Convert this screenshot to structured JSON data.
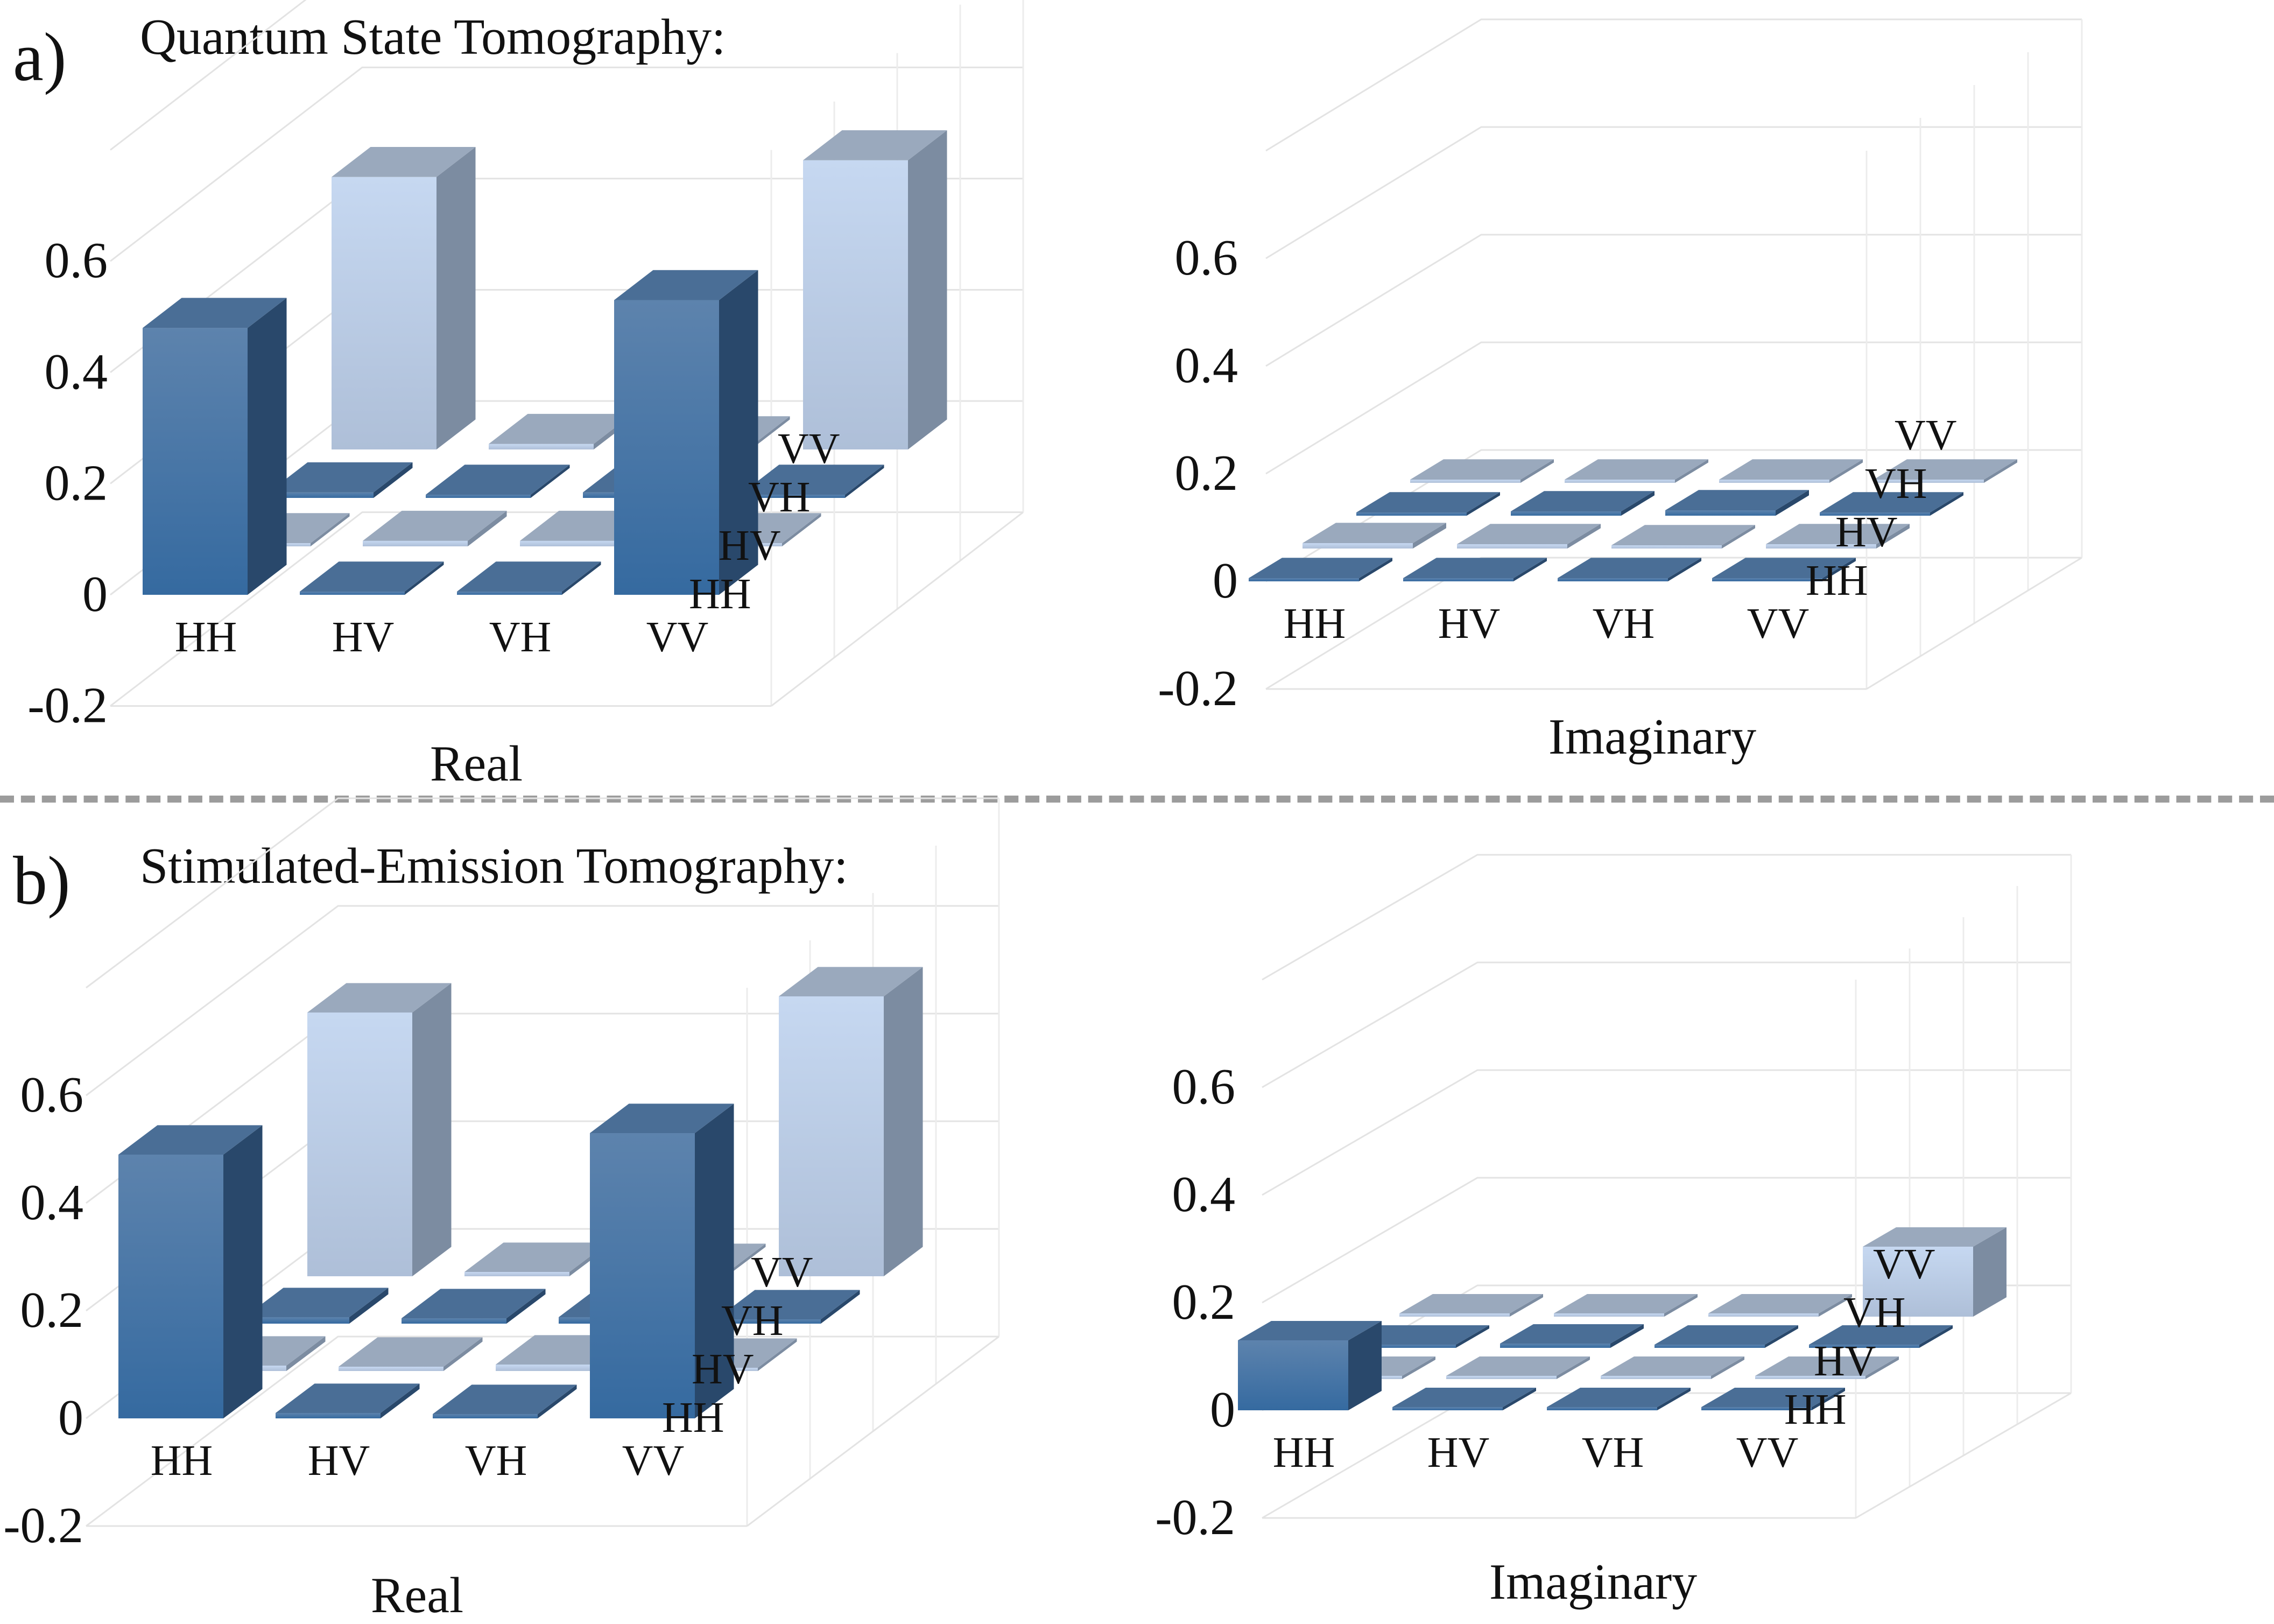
{
  "panels": [
    {
      "letter": "a)",
      "title": "Quantum State Tomography:"
    },
    {
      "letter": "b)",
      "title": "Stimulated-Emission Tomography:"
    }
  ],
  "chart_data": [
    {
      "panel": "a)",
      "type": "bar3d",
      "xlabel": "Real",
      "rows": [
        "HH",
        "HV",
        "VH",
        "VV"
      ],
      "cols": [
        "HH",
        "HV",
        "VH",
        "VV"
      ],
      "yticks": [
        "-0.2",
        "0",
        "0.2",
        "0.4",
        "0.6"
      ],
      "ylim": [
        -0.2,
        0.8
      ],
      "values": [
        [
          0.48,
          0.005,
          0.005,
          0.53
        ],
        [
          0.005,
          0.01,
          0.01,
          0.005
        ],
        [
          0.01,
          0.005,
          0.01,
          0.005
        ],
        [
          0.49,
          0.01,
          0.005,
          0.52
        ]
      ]
    },
    {
      "panel": "a)",
      "type": "bar3d",
      "xlabel": "Imaginary",
      "rows": [
        "HH",
        "HV",
        "VH",
        "VV"
      ],
      "cols": [
        "HH",
        "HV",
        "VH",
        "VV"
      ],
      "yticks": [
        "-0.2",
        "0",
        "0.2",
        "0.4",
        "0.6"
      ],
      "ylim": [
        -0.2,
        0.8
      ],
      "values": [
        [
          0.004,
          0.004,
          0.006,
          0.004
        ],
        [
          0.01,
          0.008,
          0.005,
          0.008
        ],
        [
          0.005,
          0.008,
          0.01,
          0.004
        ],
        [
          0.004,
          0.006,
          0.006,
          0.004
        ]
      ]
    },
    {
      "panel": "b)",
      "type": "bar3d",
      "xlabel": "Real",
      "rows": [
        "HH",
        "HV",
        "VH",
        "VV"
      ],
      "cols": [
        "HH",
        "HV",
        "VH",
        "VV"
      ],
      "yticks": [
        "-0.2",
        "0",
        "0.2",
        "0.4",
        "0.6"
      ],
      "ylim": [
        -0.2,
        0.8
      ],
      "values": [
        [
          0.49,
          0.01,
          0.008,
          0.53
        ],
        [
          0.01,
          0.008,
          0.012,
          0.006
        ],
        [
          0.012,
          0.01,
          0.012,
          0.008
        ],
        [
          0.49,
          0.008,
          0.006,
          0.52
        ]
      ]
    },
    {
      "panel": "b)",
      "type": "bar3d",
      "xlabel": "Imaginary",
      "rows": [
        "HH",
        "HV",
        "VH",
        "VV"
      ],
      "cols": [
        "HH",
        "HV",
        "VH",
        "VV"
      ],
      "yticks": [
        "-0.2",
        "0",
        "0.2",
        "0.4",
        "0.6"
      ],
      "ylim": [
        -0.2,
        0.8
      ],
      "values": [
        [
          0.13,
          0.005,
          0.005,
          0.005
        ],
        [
          0.006,
          0.006,
          0.006,
          0.006
        ],
        [
          0.005,
          0.008,
          0.006,
          0.006
        ],
        [
          0.005,
          0.004,
          0.006,
          0.13
        ]
      ]
    }
  ]
}
